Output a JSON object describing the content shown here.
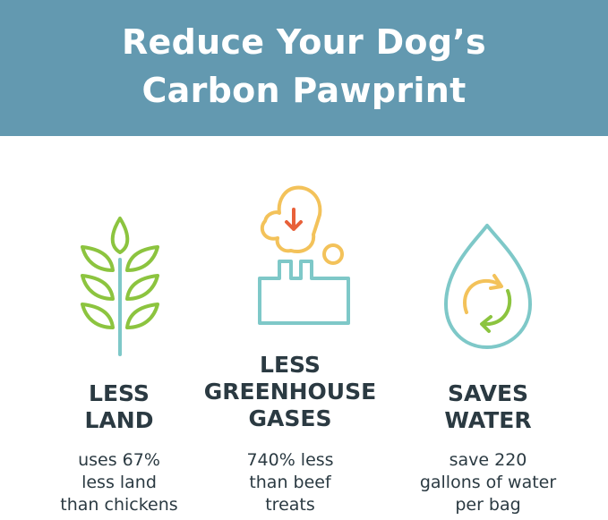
{
  "header": {
    "title_line1": "Reduce Your Dog’s",
    "title_line2": "Carbon Pawprint",
    "background": "#6399b0"
  },
  "colors": {
    "green": "#8cc43f",
    "teal": "#7ec8c8",
    "yellow": "#f3c25a",
    "red": "#e8613a",
    "text": "#2b3a42"
  },
  "columns": [
    {
      "icon": "wheat-plant-icon",
      "heading": [
        "LESS",
        "LAND"
      ],
      "body": [
        "uses 67%",
        "less land",
        "than chickens"
      ]
    },
    {
      "icon": "factory-smoke-icon",
      "heading": [
        "LESS",
        "GREENHOUSE",
        "GASES"
      ],
      "body": [
        "740% less",
        "than beef",
        "treats"
      ]
    },
    {
      "icon": "water-drop-recycle-icon",
      "heading": [
        "SAVES",
        "WATER"
      ],
      "body": [
        "save 220",
        "gallons of water",
        "per bag"
      ]
    }
  ]
}
